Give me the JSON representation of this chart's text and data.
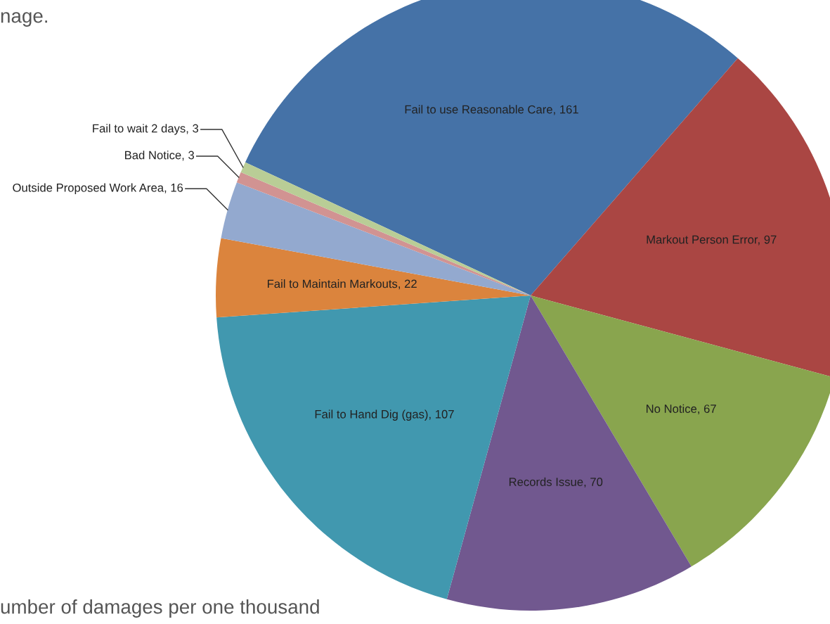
{
  "chart_data": {
    "type": "pie",
    "categories": [
      "Fail to use Reasonable Care, 161",
      "Markout Person Error, 97",
      "No Notice, 67",
      "Records Issue, 70",
      "Fail to Hand Dig (gas), 107",
      "Fail to Maintain Markouts, 22",
      "Outside Proposed Work Area, 16",
      "Bad Notice, 3",
      "Fail to wait 2 days, 3"
    ],
    "values": [
      161,
      97,
      67,
      70,
      107,
      22,
      16,
      3,
      3
    ],
    "colors": [
      "#4572a7",
      "#aa4643",
      "#89a54e",
      "#71588f",
      "#4198af",
      "#db843d",
      "#93a9cf",
      "#d19392",
      "#b9cd96"
    ],
    "annotations": [
      "nage.",
      "umber of damages per one thousand"
    ]
  }
}
